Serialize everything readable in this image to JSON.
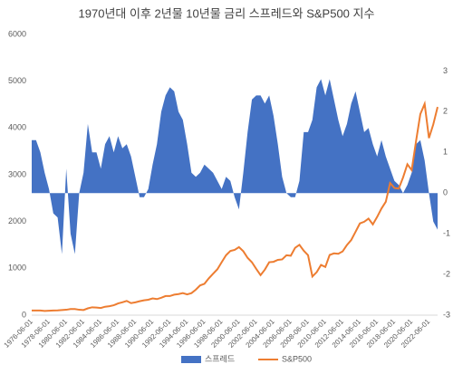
{
  "chart_data": {
    "type": "combo",
    "title": "1970년대 이후 2년물 10년물 금리 스프레드와 S&P500 지수",
    "categories": [
      "1976-06-01",
      null,
      null,
      null,
      "1978-06-01",
      null,
      null,
      null,
      "1980-06-01",
      null,
      null,
      null,
      "1982-06-01",
      null,
      null,
      null,
      "1984-06-01",
      null,
      null,
      null,
      "1986-06-01",
      null,
      null,
      null,
      "1988-06-01",
      null,
      null,
      null,
      "1990-06-01",
      null,
      null,
      null,
      "1992-06-01",
      null,
      null,
      null,
      "1994-06-01",
      null,
      null,
      null,
      "1996-06-01",
      null,
      null,
      null,
      "1998-06-01",
      null,
      null,
      null,
      "2000-06-01",
      null,
      null,
      null,
      "2002-06-01",
      null,
      null,
      null,
      "2004-06-01",
      null,
      null,
      null,
      "2006-06-01",
      null,
      null,
      null,
      "2008-06-01",
      null,
      null,
      null,
      "2010-06-01",
      null,
      null,
      null,
      "2012-06-01",
      null,
      null,
      null,
      "2014-06-01",
      null,
      null,
      null,
      "2016-06-01",
      null,
      null,
      null,
      "2018-06-01",
      null,
      null,
      null,
      "2020-06-01",
      null,
      null,
      null,
      "2022-06-01",
      null,
      null
    ],
    "series": [
      {
        "name": "스프레드",
        "type": "area",
        "axis": "y2",
        "color": "#4472c4",
        "values": [
          1.3,
          1.3,
          1.0,
          0.5,
          0.1,
          -0.5,
          -0.6,
          -1.5,
          0.6,
          -1.0,
          -1.5,
          0.0,
          0.5,
          1.7,
          1.0,
          1.0,
          0.6,
          1.2,
          1.4,
          1.0,
          1.4,
          1.1,
          1.2,
          0.9,
          0.4,
          -0.1,
          -0.1,
          0.1,
          0.7,
          1.2,
          2.0,
          2.4,
          2.6,
          2.5,
          2.0,
          1.8,
          1.2,
          0.5,
          0.4,
          0.5,
          0.7,
          0.6,
          0.5,
          0.3,
          0.1,
          0.4,
          0.3,
          -0.1,
          -0.4,
          0.5,
          1.5,
          2.3,
          2.4,
          2.4,
          2.2,
          2.4,
          1.9,
          1.2,
          0.4,
          0.0,
          -0.1,
          -0.1,
          0.3,
          1.5,
          1.5,
          1.8,
          2.6,
          2.8,
          2.4,
          2.8,
          2.3,
          1.8,
          1.4,
          1.7,
          2.2,
          2.5,
          2.0,
          1.5,
          1.6,
          1.2,
          0.9,
          1.3,
          0.9,
          0.6,
          0.3,
          0.2,
          0.0,
          0.2,
          0.5,
          1.2,
          1.3,
          0.8,
          0.0,
          -0.7,
          -0.9
        ]
      },
      {
        "name": "S&P500",
        "type": "line",
        "color": "#ed7d31",
        "values": [
          100,
          100,
          100,
          90,
          95,
          100,
          102,
          110,
          115,
          130,
          130,
          115,
          110,
          145,
          168,
          163,
          153,
          180,
          191,
          211,
          250,
          274,
          304,
          257,
          273,
          297,
          317,
          329,
          358,
          343,
          371,
          408,
          408,
          438,
          450,
          472,
          444,
          470,
          544,
          636,
          670,
          786,
          885,
          980,
          1133,
          1280,
          1372,
          1394,
          1454,
          1366,
          1224,
          1130,
          989,
          855,
          974,
          1131,
          1140,
          1181,
          1191,
          1280,
          1270,
          1438,
          1503,
          1378,
          1280,
          825,
          919,
          1073,
          1030,
          1286,
          1320,
          1312,
          1362,
          1498,
          1606,
          1782,
          1960,
          1995,
          2063,
          1940,
          2099,
          2278,
          2423,
          2823,
          2718,
          2704,
          2942,
          3225,
          3100,
          3714,
          4297,
          4515,
          3785,
          4076,
          4450
        ]
      }
    ],
    "ylim": [
      0,
      6000
    ],
    "yticks": [
      0,
      1000,
      2000,
      3000,
      4000,
      5000,
      6000
    ],
    "y2lim": [
      -3,
      3.9
    ],
    "y2ticks": [
      -3,
      -2,
      -1,
      0,
      1,
      2,
      3
    ],
    "legend": "bottom"
  }
}
